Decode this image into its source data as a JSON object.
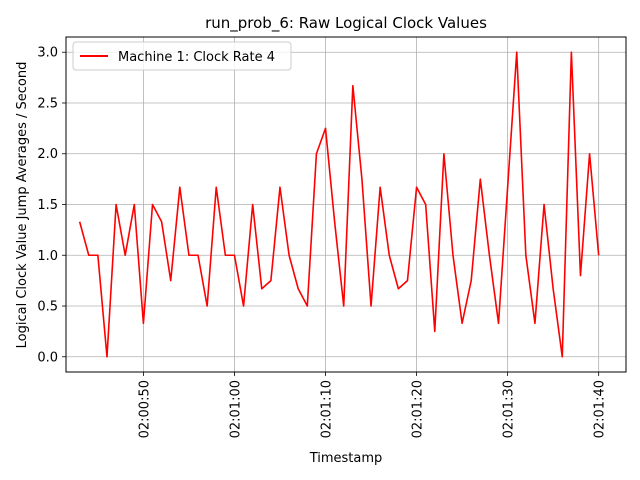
{
  "chart_data": {
    "type": "line",
    "title": "run_prob_6: Raw Logical Clock Values",
    "xlabel": "Timestamp",
    "ylabel": "Logical Clock Value Jump Averages / Second",
    "x_start": "02:00:43",
    "x_step_seconds": 1,
    "xlim": [
      "02:00:41.5",
      "02:01:43"
    ],
    "ylim": [
      -0.15,
      3.15
    ],
    "x_ticks": [
      "02:00:50",
      "02:01:00",
      "02:01:10",
      "02:01:20",
      "02:01:30",
      "02:01:40"
    ],
    "y_ticks": [
      0.0,
      0.5,
      1.0,
      1.5,
      2.0,
      2.5,
      3.0
    ],
    "y_tick_labels": [
      "0.0",
      "0.5",
      "1.0",
      "1.5",
      "2.0",
      "2.5",
      "3.0"
    ],
    "grid": true,
    "legend_position": "top-left",
    "series": [
      {
        "name": "Machine 1: Clock Rate 4",
        "color": "#ff0000",
        "values": [
          1.33,
          1.0,
          1.0,
          0.0,
          1.5,
          1.0,
          1.5,
          0.33,
          1.5,
          1.33,
          0.75,
          1.67,
          1.0,
          1.0,
          0.5,
          1.67,
          1.0,
          1.0,
          0.5,
          1.5,
          0.67,
          0.75,
          1.67,
          1.0,
          0.67,
          0.5,
          2.0,
          2.25,
          1.33,
          0.5,
          2.67,
          1.75,
          0.5,
          1.67,
          1.0,
          0.67,
          0.75,
          1.67,
          1.5,
          0.25,
          2.0,
          1.0,
          0.33,
          0.75,
          1.75,
          1.0,
          0.33,
          1.67,
          3.0,
          1.0,
          0.33,
          1.5,
          0.67,
          0.0,
          3.0,
          0.8,
          2.0,
          1.0
        ]
      }
    ]
  }
}
